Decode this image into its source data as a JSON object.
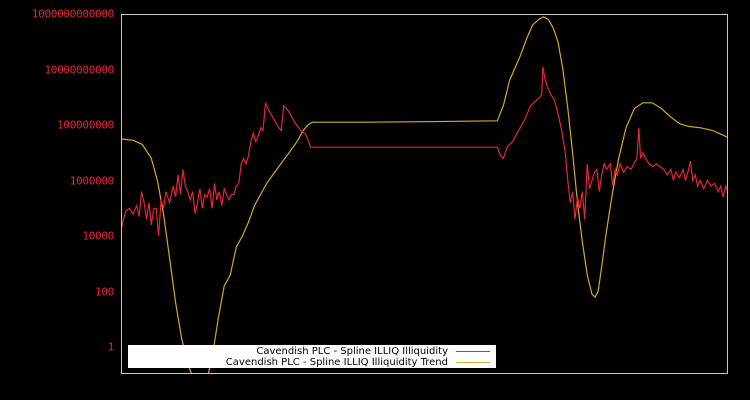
{
  "chart_data": {
    "type": "line",
    "title": "",
    "xlabel": "",
    "ylabel": "",
    "yscale": "log",
    "ylim": [
      0.3,
      1000000000000
    ],
    "grid": false,
    "legend_position": "lower-left",
    "yticks": [
      {
        "value": 1000000000000,
        "label": "1000000000000"
      },
      {
        "value": 10000000000,
        "label": "10000000000"
      },
      {
        "value": 100000000,
        "label": "100000000"
      },
      {
        "value": 1000000,
        "label": "1000000"
      },
      {
        "value": 10000,
        "label": "10000"
      },
      {
        "value": 100,
        "label": "100"
      },
      {
        "value": 1,
        "label": "1"
      }
    ],
    "x_note": "x axis unlabeled; x given as fraction of plot width (0-1)",
    "series": [
      {
        "name": "Cavendish PLC - Spline ILLIQ Illiquidity",
        "color": "#e32636",
        "log10_points": [
          [
            0.0,
            4.2
          ],
          [
            0.004,
            4.6
          ],
          [
            0.008,
            4.9
          ],
          [
            0.014,
            5.0
          ],
          [
            0.02,
            4.8
          ],
          [
            0.026,
            5.1
          ],
          [
            0.03,
            4.7
          ],
          [
            0.034,
            5.6
          ],
          [
            0.038,
            5.2
          ],
          [
            0.042,
            4.6
          ],
          [
            0.046,
            5.2
          ],
          [
            0.05,
            4.4
          ],
          [
            0.054,
            5.0
          ],
          [
            0.058,
            5.0
          ],
          [
            0.062,
            4.0
          ],
          [
            0.066,
            5.3
          ],
          [
            0.07,
            5.0
          ],
          [
            0.074,
            5.6
          ],
          [
            0.08,
            5.2
          ],
          [
            0.086,
            5.8
          ],
          [
            0.09,
            5.4
          ],
          [
            0.094,
            6.2
          ],
          [
            0.098,
            5.5
          ],
          [
            0.102,
            6.4
          ],
          [
            0.106,
            5.8
          ],
          [
            0.11,
            5.6
          ],
          [
            0.114,
            5.3
          ],
          [
            0.118,
            5.6
          ],
          [
            0.122,
            4.8
          ],
          [
            0.126,
            5.2
          ],
          [
            0.13,
            5.7
          ],
          [
            0.134,
            5.0
          ],
          [
            0.138,
            5.5
          ],
          [
            0.142,
            5.4
          ],
          [
            0.146,
            5.7
          ],
          [
            0.15,
            5.0
          ],
          [
            0.154,
            5.9
          ],
          [
            0.158,
            5.3
          ],
          [
            0.162,
            5.6
          ],
          [
            0.166,
            5.1
          ],
          [
            0.17,
            5.7
          ],
          [
            0.174,
            5.5
          ],
          [
            0.178,
            5.3
          ],
          [
            0.182,
            5.5
          ],
          [
            0.186,
            5.5
          ],
          [
            0.19,
            5.8
          ],
          [
            0.194,
            5.9
          ],
          [
            0.198,
            6.6
          ],
          [
            0.202,
            6.8
          ],
          [
            0.206,
            6.6
          ],
          [
            0.21,
            6.9
          ],
          [
            0.214,
            7.4
          ],
          [
            0.218,
            7.7
          ],
          [
            0.222,
            7.4
          ],
          [
            0.226,
            7.6
          ],
          [
            0.23,
            7.9
          ],
          [
            0.234,
            7.8
          ],
          [
            0.238,
            8.8
          ],
          [
            0.244,
            8.5
          ],
          [
            0.252,
            8.2
          ],
          [
            0.26,
            7.9
          ],
          [
            0.264,
            7.8
          ],
          [
            0.268,
            8.7
          ],
          [
            0.276,
            8.5
          ],
          [
            0.286,
            8.1
          ],
          [
            0.296,
            7.8
          ],
          [
            0.302,
            7.7
          ],
          [
            0.306,
            7.6
          ],
          [
            0.312,
            7.2
          ],
          [
            0.326,
            7.2
          ],
          [
            0.4,
            7.2
          ],
          [
            0.5,
            7.2
          ],
          [
            0.6,
            7.2
          ],
          [
            0.62,
            7.2
          ],
          [
            0.625,
            6.9
          ],
          [
            0.63,
            6.8
          ],
          [
            0.636,
            7.2
          ],
          [
            0.645,
            7.4
          ],
          [
            0.655,
            7.8
          ],
          [
            0.665,
            8.2
          ],
          [
            0.675,
            8.7
          ],
          [
            0.685,
            8.9
          ],
          [
            0.69,
            9.0
          ],
          [
            0.693,
            9.1
          ],
          [
            0.695,
            10.1
          ],
          [
            0.698,
            9.7
          ],
          [
            0.702,
            9.4
          ],
          [
            0.708,
            9.1
          ],
          [
            0.714,
            8.9
          ],
          [
            0.72,
            8.4
          ],
          [
            0.726,
            7.8
          ],
          [
            0.732,
            7.0
          ],
          [
            0.736,
            6.0
          ],
          [
            0.74,
            5.2
          ],
          [
            0.744,
            5.6
          ],
          [
            0.748,
            4.6
          ],
          [
            0.752,
            5.4
          ],
          [
            0.756,
            5.0
          ],
          [
            0.76,
            5.6
          ],
          [
            0.764,
            4.6
          ],
          [
            0.768,
            6.6
          ],
          [
            0.772,
            5.7
          ],
          [
            0.776,
            6.0
          ],
          [
            0.78,
            6.3
          ],
          [
            0.784,
            6.4
          ],
          [
            0.788,
            5.6
          ],
          [
            0.792,
            6.2
          ],
          [
            0.796,
            6.6
          ],
          [
            0.8,
            6.4
          ],
          [
            0.806,
            6.6
          ],
          [
            0.81,
            5.8
          ],
          [
            0.814,
            6.4
          ],
          [
            0.818,
            6.2
          ],
          [
            0.822,
            6.6
          ],
          [
            0.828,
            6.3
          ],
          [
            0.834,
            6.5
          ],
          [
            0.84,
            6.4
          ],
          [
            0.845,
            6.6
          ],
          [
            0.85,
            6.8
          ],
          [
            0.853,
            7.9
          ],
          [
            0.856,
            6.8
          ],
          [
            0.86,
            7.0
          ],
          [
            0.864,
            6.8
          ],
          [
            0.87,
            6.6
          ],
          [
            0.876,
            6.5
          ],
          [
            0.882,
            6.6
          ],
          [
            0.888,
            6.5
          ],
          [
            0.894,
            6.4
          ],
          [
            0.9,
            6.2
          ],
          [
            0.906,
            6.4
          ],
          [
            0.91,
            6.0
          ],
          [
            0.914,
            6.3
          ],
          [
            0.92,
            6.1
          ],
          [
            0.926,
            6.4
          ],
          [
            0.93,
            6.0
          ],
          [
            0.934,
            6.3
          ],
          [
            0.938,
            6.7
          ],
          [
            0.942,
            6.0
          ],
          [
            0.946,
            6.2
          ],
          [
            0.95,
            5.8
          ],
          [
            0.954,
            6.0
          ],
          [
            0.96,
            5.7
          ],
          [
            0.966,
            6.0
          ],
          [
            0.972,
            5.8
          ],
          [
            0.978,
            5.9
          ],
          [
            0.984,
            5.6
          ],
          [
            0.988,
            5.8
          ],
          [
            0.992,
            5.4
          ],
          [
            0.996,
            5.8
          ],
          [
            1.0,
            5.6
          ]
        ]
      },
      {
        "name": "Cavendish PLC - Spline ILLIQ Illiquidity Trend",
        "color": "#d4a82a",
        "log10_points": [
          [
            0.0,
            7.5
          ],
          [
            0.02,
            7.45
          ],
          [
            0.035,
            7.3
          ],
          [
            0.05,
            6.8
          ],
          [
            0.06,
            6.0
          ],
          [
            0.07,
            4.8
          ],
          [
            0.08,
            3.2
          ],
          [
            0.09,
            1.6
          ],
          [
            0.1,
            0.3
          ],
          [
            0.11,
            -0.6
          ],
          [
            0.12,
            -1.2
          ],
          [
            0.13,
            -1.5
          ],
          [
            0.14,
            -1.3
          ],
          [
            0.15,
            -0.4
          ],
          [
            0.16,
            1.0
          ],
          [
            0.17,
            2.2
          ],
          [
            0.18,
            2.6
          ],
          [
            0.19,
            3.6
          ],
          [
            0.2,
            4.0
          ],
          [
            0.21,
            4.5
          ],
          [
            0.22,
            5.1
          ],
          [
            0.23,
            5.5
          ],
          [
            0.24,
            5.9
          ],
          [
            0.25,
            6.2
          ],
          [
            0.26,
            6.5
          ],
          [
            0.27,
            6.8
          ],
          [
            0.28,
            7.1
          ],
          [
            0.29,
            7.4
          ],
          [
            0.3,
            7.8
          ],
          [
            0.308,
            8.0
          ],
          [
            0.315,
            8.1
          ],
          [
            0.33,
            8.1
          ],
          [
            0.4,
            8.1
          ],
          [
            0.5,
            8.12
          ],
          [
            0.62,
            8.15
          ],
          [
            0.63,
            8.7
          ],
          [
            0.64,
            9.6
          ],
          [
            0.648,
            10.0
          ],
          [
            0.658,
            10.5
          ],
          [
            0.668,
            11.1
          ],
          [
            0.678,
            11.6
          ],
          [
            0.688,
            11.8
          ],
          [
            0.696,
            11.9
          ],
          [
            0.704,
            11.8
          ],
          [
            0.712,
            11.5
          ],
          [
            0.72,
            11.0
          ],
          [
            0.728,
            10.0
          ],
          [
            0.736,
            8.6
          ],
          [
            0.744,
            7.0
          ],
          [
            0.752,
            5.2
          ],
          [
            0.76,
            3.8
          ],
          [
            0.768,
            2.6
          ],
          [
            0.776,
            1.9
          ],
          [
            0.781,
            1.8
          ],
          [
            0.786,
            2.0
          ],
          [
            0.792,
            2.9
          ],
          [
            0.8,
            4.2
          ],
          [
            0.81,
            5.6
          ],
          [
            0.82,
            6.8
          ],
          [
            0.832,
            7.9
          ],
          [
            0.846,
            8.6
          ],
          [
            0.86,
            8.8
          ],
          [
            0.875,
            8.8
          ],
          [
            0.89,
            8.6
          ],
          [
            0.905,
            8.3
          ],
          [
            0.92,
            8.05
          ],
          [
            0.935,
            7.95
          ],
          [
            0.955,
            7.9
          ],
          [
            0.975,
            7.8
          ],
          [
            0.99,
            7.65
          ],
          [
            1.0,
            7.55
          ]
        ]
      }
    ]
  },
  "plot": {
    "frame_color": "#c8c8c8",
    "tick_label_color": "#e32636",
    "background": "#000000"
  },
  "legend": {
    "items": [
      {
        "label": "Cavendish PLC - Spline ILLIQ Illiquidity",
        "color": "#e32636"
      },
      {
        "label": "Cavendish PLC - Spline ILLIQ Illiquidity Trend",
        "color": "#d4a82a"
      }
    ]
  }
}
